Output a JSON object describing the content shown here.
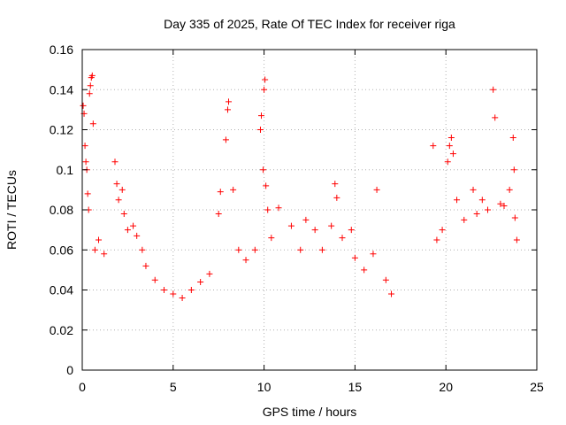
{
  "chart_data": {
    "type": "scatter",
    "title": "Day 335 of 2025, Rate Of TEC Index for receiver riga",
    "xlabel": "GPS time / hours",
    "ylabel": "ROTI / TECUs",
    "xlim": [
      0,
      25
    ],
    "ylim": [
      0,
      0.16
    ],
    "xticks": [
      0,
      5,
      10,
      15,
      20,
      25
    ],
    "xtick_labels": [
      "0",
      "5",
      "10",
      "15",
      "20",
      "25"
    ],
    "yticks": [
      0,
      0.02,
      0.04,
      0.06,
      0.08,
      0.1,
      0.12,
      0.14,
      0.16
    ],
    "ytick_labels": [
      "0",
      "0.02",
      "0.04",
      "0.06",
      "0.08",
      "0.1",
      "0.12",
      "0.14",
      "0.16"
    ],
    "grid": true,
    "marker": "plus",
    "series_color": "#ff0000",
    "data_gap_hours": [
      17.1,
      19.2
    ],
    "series": [
      {
        "name": "ROTI",
        "points": [
          [
            0.05,
            0.132
          ],
          [
            0.1,
            0.128
          ],
          [
            0.15,
            0.112
          ],
          [
            0.2,
            0.104
          ],
          [
            0.25,
            0.1
          ],
          [
            0.3,
            0.088
          ],
          [
            0.35,
            0.08
          ],
          [
            0.4,
            0.138
          ],
          [
            0.45,
            0.142
          ],
          [
            0.5,
            0.146
          ],
          [
            0.55,
            0.147
          ],
          [
            0.6,
            0.123
          ],
          [
            0.7,
            0.06
          ],
          [
            0.9,
            0.065
          ],
          [
            1.2,
            0.058
          ],
          [
            1.8,
            0.104
          ],
          [
            1.9,
            0.093
          ],
          [
            2.0,
            0.085
          ],
          [
            2.2,
            0.09
          ],
          [
            2.3,
            0.078
          ],
          [
            2.5,
            0.07
          ],
          [
            2.8,
            0.072
          ],
          [
            3.0,
            0.067
          ],
          [
            3.3,
            0.06
          ],
          [
            3.5,
            0.052
          ],
          [
            4.0,
            0.045
          ],
          [
            4.5,
            0.04
          ],
          [
            5.0,
            0.038
          ],
          [
            5.5,
            0.036
          ],
          [
            6.0,
            0.04
          ],
          [
            6.5,
            0.044
          ],
          [
            7.0,
            0.048
          ],
          [
            7.5,
            0.078
          ],
          [
            7.6,
            0.089
          ],
          [
            7.9,
            0.115
          ],
          [
            8.0,
            0.13
          ],
          [
            8.05,
            0.134
          ],
          [
            8.3,
            0.09
          ],
          [
            8.6,
            0.06
          ],
          [
            9.0,
            0.055
          ],
          [
            9.5,
            0.06
          ],
          [
            9.8,
            0.12
          ],
          [
            9.85,
            0.127
          ],
          [
            9.95,
            0.1
          ],
          [
            10.0,
            0.14
          ],
          [
            10.05,
            0.145
          ],
          [
            10.1,
            0.092
          ],
          [
            10.2,
            0.08
          ],
          [
            10.4,
            0.066
          ],
          [
            10.8,
            0.081
          ],
          [
            11.5,
            0.072
          ],
          [
            12.0,
            0.06
          ],
          [
            12.3,
            0.075
          ],
          [
            12.8,
            0.07
          ],
          [
            13.2,
            0.06
          ],
          [
            13.7,
            0.072
          ],
          [
            13.9,
            0.093
          ],
          [
            14.0,
            0.086
          ],
          [
            14.3,
            0.066
          ],
          [
            14.8,
            0.07
          ],
          [
            15.0,
            0.056
          ],
          [
            15.5,
            0.05
          ],
          [
            16.0,
            0.058
          ],
          [
            16.2,
            0.09
          ],
          [
            16.7,
            0.045
          ],
          [
            17.0,
            0.038
          ],
          [
            19.3,
            0.112
          ],
          [
            19.5,
            0.065
          ],
          [
            19.8,
            0.07
          ],
          [
            20.1,
            0.104
          ],
          [
            20.2,
            0.112
          ],
          [
            20.3,
            0.116
          ],
          [
            20.4,
            0.108
          ],
          [
            20.6,
            0.085
          ],
          [
            21.0,
            0.075
          ],
          [
            21.5,
            0.09
          ],
          [
            21.7,
            0.078
          ],
          [
            22.0,
            0.085
          ],
          [
            22.3,
            0.08
          ],
          [
            22.6,
            0.14
          ],
          [
            22.7,
            0.126
          ],
          [
            23.0,
            0.083
          ],
          [
            23.2,
            0.082
          ],
          [
            23.5,
            0.09
          ],
          [
            23.7,
            0.116
          ],
          [
            23.75,
            0.1
          ],
          [
            23.8,
            0.076
          ],
          [
            23.9,
            0.065
          ]
        ]
      }
    ]
  }
}
